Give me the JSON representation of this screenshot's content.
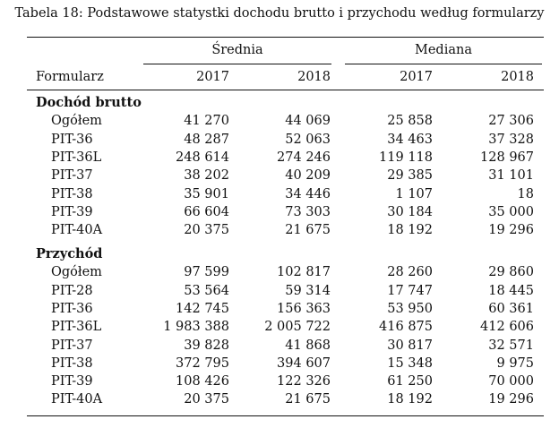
{
  "caption": "Tabela 18: Podstawowe statystki dochodu brutto i przychodu według formularzy",
  "headers": {
    "group_mean": "Średnia",
    "group_median": "Mediana",
    "row_label": "Formularz",
    "years": [
      "2017",
      "2018",
      "2017",
      "2018"
    ]
  },
  "sections": [
    {
      "title": "Dochód brutto",
      "rows": [
        {
          "label": "Ogółem",
          "values": [
            "41 270",
            "44 069",
            "25 858",
            "27 306"
          ]
        },
        {
          "label": "PIT-36",
          "values": [
            "48 287",
            "52 063",
            "34 463",
            "37 328"
          ]
        },
        {
          "label": "PIT-36L",
          "values": [
            "248 614",
            "274 246",
            "119 118",
            "128 967"
          ]
        },
        {
          "label": "PIT-37",
          "values": [
            "38 202",
            "40 209",
            "29 385",
            "31 101"
          ]
        },
        {
          "label": "PIT-38",
          "values": [
            "35 901",
            "34 446",
            "1 107",
            "18"
          ]
        },
        {
          "label": "PIT-39",
          "values": [
            "66 604",
            "73 303",
            "30 184",
            "35 000"
          ]
        },
        {
          "label": "PIT-40A",
          "values": [
            "20 375",
            "21 675",
            "18 192",
            "19  296"
          ]
        }
      ]
    },
    {
      "title": "Przychód",
      "rows": [
        {
          "label": "Ogółem",
          "values": [
            "97 599",
            "102 817",
            "28 260",
            "29 860"
          ]
        },
        {
          "label": "PIT-28",
          "values": [
            "53 564",
            "59 314",
            "17 747",
            "18 445"
          ]
        },
        {
          "label": "PIT-36",
          "values": [
            "142 745",
            "156 363",
            "53 950",
            "60 361"
          ]
        },
        {
          "label": "PIT-36L",
          "values": [
            "1 983 388",
            "2 005 722",
            "416 875",
            "412 606"
          ]
        },
        {
          "label": "PIT-37",
          "values": [
            "39 828",
            "41 868",
            "30 817",
            "32 571"
          ]
        },
        {
          "label": "PIT-38",
          "values": [
            "372 795",
            "394 607",
            "15 348",
            "9 975"
          ]
        },
        {
          "label": "PIT-39",
          "values": [
            "108 426",
            "122 326",
            "61 250",
            "70 000"
          ]
        },
        {
          "label": "PIT-40A",
          "values": [
            "20 375",
            "21 675",
            "18 192",
            "19 296"
          ]
        }
      ]
    }
  ]
}
